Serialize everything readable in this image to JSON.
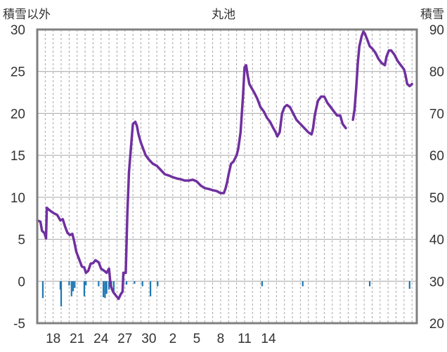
{
  "chart_data": {
    "type": "line",
    "title": "丸池",
    "left_axis_label": "積雪以外",
    "right_axis_label": "積雪",
    "left_axis": {
      "ylim": [
        -5,
        30
      ],
      "ticks": [
        "30",
        "25",
        "20",
        "15",
        "10",
        "5",
        "0",
        "-5"
      ]
    },
    "right_axis": {
      "ylim": [
        20,
        90
      ],
      "ticks": [
        "90",
        "80",
        "70",
        "60",
        "50",
        "40",
        "30",
        "20"
      ]
    },
    "x_tick_labels": [
      "18",
      "21",
      "24",
      "27",
      "30",
      "2",
      "5",
      "8",
      "11",
      "14"
    ],
    "grid": "vertical dashed daily lines, horizontal lines at left-axis ticks",
    "series": [
      {
        "color": "#7030a0",
        "axis": "right",
        "points": [
          [
            16.0,
            44.5
          ],
          [
            16.4,
            44.2
          ],
          [
            16.6,
            42.0
          ],
          [
            16.9,
            41.5
          ],
          [
            17.1,
            40.2
          ],
          [
            17.2,
            47.5
          ],
          [
            17.5,
            47.0
          ],
          [
            18.0,
            46.3
          ],
          [
            18.5,
            45.8
          ],
          [
            18.9,
            44.5
          ],
          [
            19.2,
            44.8
          ],
          [
            19.5,
            43.0
          ],
          [
            19.8,
            41.5
          ],
          [
            20.1,
            41.0
          ],
          [
            20.4,
            41.3
          ],
          [
            20.6,
            39.8
          ],
          [
            20.9,
            37.0
          ],
          [
            21.2,
            35.5
          ],
          [
            21.6,
            33.5
          ],
          [
            21.9,
            33.3
          ],
          [
            22.1,
            32.0
          ],
          [
            22.4,
            32.5
          ],
          [
            22.7,
            34.2
          ],
          [
            23.0,
            34.3
          ],
          [
            23.3,
            35.0
          ],
          [
            23.7,
            34.5
          ],
          [
            24.0,
            33.0
          ],
          [
            24.4,
            32.5
          ],
          [
            24.7,
            32.0
          ],
          [
            25.0,
            33.0
          ],
          [
            25.2,
            29.0
          ],
          [
            25.5,
            27.5
          ],
          [
            25.9,
            26.5
          ],
          [
            26.2,
            25.8
          ],
          [
            26.5,
            27.0
          ],
          [
            26.7,
            27.5
          ],
          [
            26.8,
            32.0
          ],
          [
            27.1,
            32.0
          ],
          [
            27.3,
            46.0
          ],
          [
            27.5,
            56.0
          ],
          [
            27.8,
            63.0
          ],
          [
            28.0,
            67.5
          ],
          [
            28.3,
            68.0
          ],
          [
            28.5,
            67.0
          ],
          [
            28.7,
            65.0
          ],
          [
            29.0,
            63.0
          ],
          [
            29.3,
            61.5
          ],
          [
            29.6,
            60.0
          ],
          [
            30.0,
            59.0
          ],
          [
            30.5,
            58.0
          ],
          [
            31.0,
            57.5
          ],
          [
            31.5,
            56.5
          ],
          [
            32.0,
            55.5
          ],
          [
            32.5,
            55.2
          ],
          [
            33.0,
            54.8
          ],
          [
            33.5,
            54.5
          ],
          [
            34.0,
            54.3
          ],
          [
            34.5,
            54.0
          ],
          [
            35.0,
            54.0
          ],
          [
            35.5,
            54.2
          ],
          [
            36.0,
            53.8
          ],
          [
            36.5,
            52.8
          ],
          [
            37.0,
            52.2
          ],
          [
            37.5,
            52.0
          ],
          [
            38.0,
            51.7
          ],
          [
            38.5,
            51.5
          ],
          [
            39.0,
            51.0
          ],
          [
            39.4,
            51.0
          ],
          [
            39.6,
            52.0
          ],
          [
            39.8,
            53.5
          ],
          [
            40.0,
            55.5
          ],
          [
            40.3,
            58.0
          ],
          [
            40.6,
            58.5
          ],
          [
            41.0,
            60.0
          ],
          [
            41.2,
            61.5
          ],
          [
            41.5,
            65.5
          ],
          [
            41.8,
            74.0
          ],
          [
            42.0,
            81.0
          ],
          [
            42.2,
            81.5
          ],
          [
            42.4,
            79.0
          ],
          [
            42.6,
            77.0
          ],
          [
            42.9,
            76.0
          ],
          [
            43.2,
            75.0
          ],
          [
            43.6,
            73.5
          ],
          [
            44.0,
            71.5
          ],
          [
            44.4,
            70.5
          ],
          [
            44.8,
            69.0
          ],
          [
            45.2,
            68.0
          ],
          [
            45.6,
            66.5
          ],
          [
            45.9,
            65.5
          ],
          [
            46.1,
            64.5
          ],
          [
            46.4,
            65.5
          ],
          [
            46.7,
            70.0
          ],
          [
            47.0,
            71.5
          ],
          [
            47.3,
            72.0
          ],
          [
            47.7,
            71.5
          ],
          [
            48.1,
            70.0
          ],
          [
            48.5,
            68.5
          ],
          [
            49.0,
            67.5
          ],
          [
            49.5,
            66.5
          ],
          [
            50.0,
            65.5
          ],
          [
            50.4,
            65.0
          ],
          [
            50.6,
            66.5
          ],
          [
            50.8,
            69.5
          ],
          [
            51.2,
            73.0
          ],
          [
            51.6,
            74.0
          ],
          [
            52.0,
            74.0
          ],
          [
            52.4,
            72.5
          ],
          [
            52.8,
            71.5
          ],
          [
            53.2,
            70.5
          ],
          [
            53.6,
            69.5
          ],
          [
            54.0,
            69.5
          ],
          [
            54.3,
            67.5
          ],
          [
            54.7,
            66.5
          ]
        ]
      },
      {
        "color": "#7030a0",
        "axis": "right",
        "points": [
          [
            55.6,
            68.5
          ],
          [
            55.8,
            71.0
          ],
          [
            56.0,
            76.0
          ],
          [
            56.2,
            82.0
          ],
          [
            56.4,
            86.0
          ],
          [
            56.7,
            88.5
          ],
          [
            56.9,
            89.5
          ],
          [
            57.1,
            89.0
          ],
          [
            57.4,
            87.5
          ],
          [
            57.7,
            86.0
          ],
          [
            58.0,
            85.5
          ],
          [
            58.4,
            84.5
          ],
          [
            58.8,
            83.0
          ],
          [
            59.2,
            82.0
          ],
          [
            59.6,
            81.5
          ],
          [
            59.8,
            83.5
          ],
          [
            60.1,
            85.0
          ],
          [
            60.4,
            85.0
          ],
          [
            60.8,
            84.0
          ],
          [
            61.2,
            82.5
          ],
          [
            61.6,
            81.5
          ],
          [
            62.0,
            80.5
          ],
          [
            62.2,
            79.0
          ],
          [
            62.4,
            77.0
          ],
          [
            62.7,
            76.5
          ],
          [
            63.0,
            77.0
          ]
        ]
      }
    ],
    "bars": {
      "color": "#1f77b4",
      "axis": "left",
      "values": [
        [
          16.7,
          -2
        ],
        [
          18.9,
          -1
        ],
        [
          19.0,
          -3
        ],
        [
          20.0,
          -0.5
        ],
        [
          20.3,
          -1.8
        ],
        [
          20.5,
          -1.2
        ],
        [
          20.7,
          -0.8
        ],
        [
          21.9,
          -1.8
        ],
        [
          22.1,
          -0.5
        ],
        [
          23.7,
          -0.6
        ],
        [
          24.3,
          -1.9
        ],
        [
          24.5,
          -2
        ],
        [
          24.7,
          -1.5
        ],
        [
          25.0,
          -1
        ],
        [
          25.3,
          -0.7
        ],
        [
          25.6,
          -1.2
        ],
        [
          27.2,
          -0.4
        ],
        [
          28.2,
          -0.3
        ],
        [
          29.2,
          -0.6
        ],
        [
          30.2,
          -1.8
        ],
        [
          31.1,
          -0.6
        ],
        [
          44.2,
          -0.6
        ],
        [
          49.3,
          -0.6
        ],
        [
          57.7,
          -0.6
        ],
        [
          62.7,
          -0.9
        ]
      ]
    },
    "x_range": [
      16,
      63.6
    ],
    "x_ticks_at": [
      18,
      21,
      24,
      27,
      30,
      33,
      36,
      39,
      42,
      45
    ]
  }
}
